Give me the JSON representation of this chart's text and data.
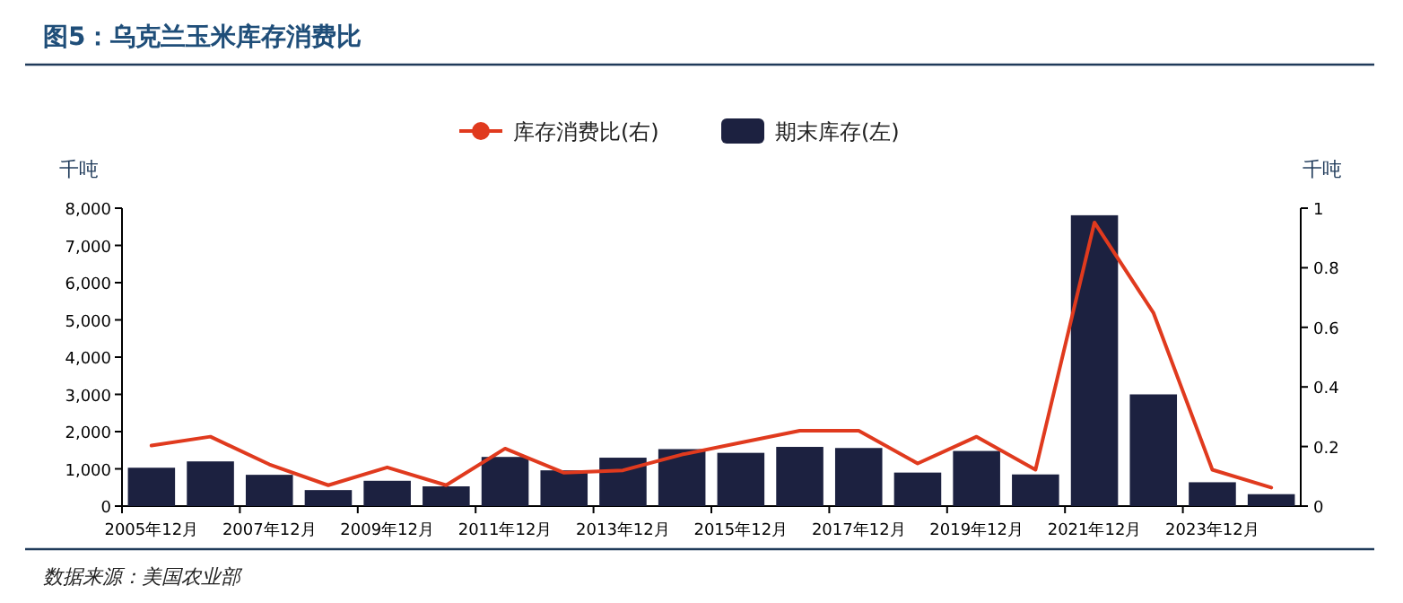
{
  "chart_data": {
    "type": "bar",
    "title": "图5：乌克兰玉米库存消费比",
    "categories": [
      "2005年12月",
      null,
      "2007年12月",
      null,
      "2009年12月",
      null,
      "2011年12月",
      null,
      "2013年12月",
      null,
      "2015年12月",
      null,
      "2017年12月",
      null,
      "2019年12月",
      null,
      "2021年12月",
      null,
      "2023年12月",
      null
    ],
    "series": [
      {
        "name": "库存消费比(右)",
        "type": "line",
        "axis": "y2",
        "color": "#e03a1e",
        "values": [
          0.203,
          0.233,
          0.14,
          0.07,
          0.13,
          0.07,
          0.193,
          0.112,
          0.12,
          0.173,
          0.213,
          0.253,
          0.253,
          0.143,
          0.233,
          0.122,
          0.952,
          0.649,
          0.122,
          0.062
        ]
      },
      {
        "name": "期末库存(左)",
        "color": "#1c2140",
        "values": [
          1030,
          1200,
          840,
          430,
          680,
          530,
          1320,
          960,
          1300,
          1530,
          1430,
          1590,
          1560,
          900,
          1480,
          850,
          7810,
          3000,
          640,
          320
        ]
      }
    ],
    "ylabel": "千吨",
    "y2label": "千吨",
    "ylim": [
      0,
      8000
    ],
    "yticks": [
      0,
      {
        "value": 1000,
        "label": "1,000"
      },
      {
        "value": 2000,
        "label": "2,000"
      },
      {
        "value": 3000,
        "label": "3,000"
      },
      {
        "value": 4000,
        "label": "4,000"
      },
      {
        "value": 5000,
        "label": "5,000"
      },
      {
        "value": 6000,
        "label": "6,000"
      },
      {
        "value": 7000,
        "label": "7,000"
      },
      {
        "value": 8000,
        "label": "8,000"
      }
    ],
    "y2lim": [
      0,
      1
    ],
    "y2ticks": [
      0,
      0.2,
      0.4,
      0.6,
      0.8,
      1
    ],
    "legend": "top",
    "grid": false,
    "annotations": [
      "数据来源：美国农业部"
    ]
  }
}
